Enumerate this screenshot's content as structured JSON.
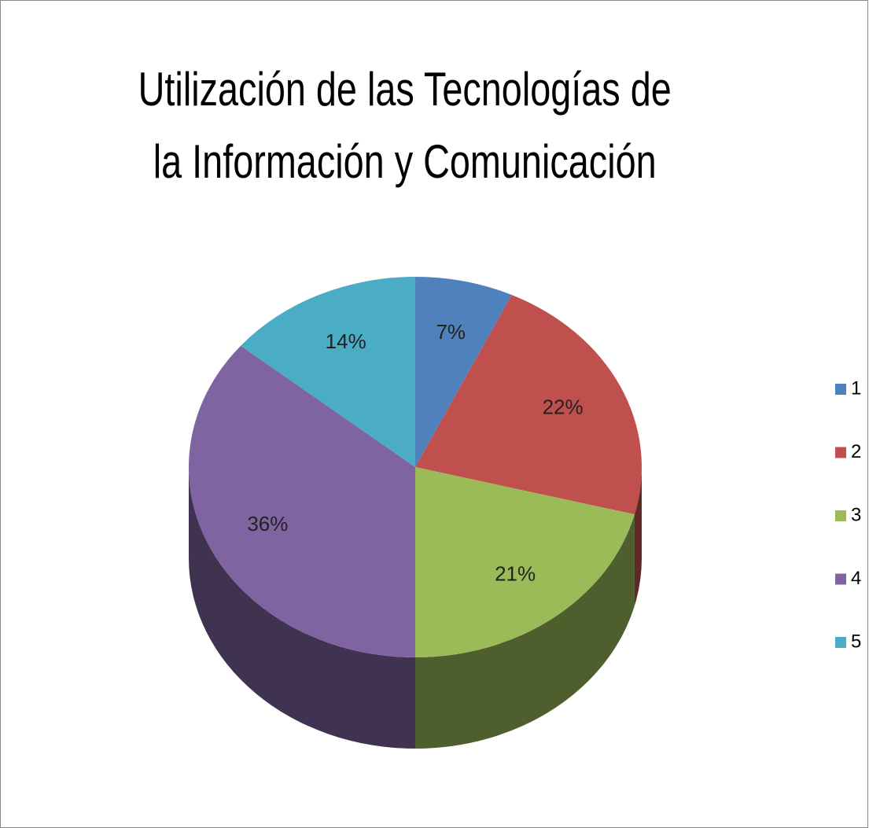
{
  "chart_data": {
    "type": "pie",
    "title": "Utilización de las Tecnologías de la Información y Comunicación",
    "categories": [
      "1",
      "2",
      "3",
      "4",
      "5"
    ],
    "values": [
      7,
      22,
      21,
      36,
      14
    ],
    "value_labels": [
      "7%",
      "22%",
      "21%",
      "36%",
      "14%"
    ],
    "colors": [
      "#4f81bd",
      "#c0504d",
      "#9bbb59",
      "#8064a2",
      "#4bacc6"
    ],
    "legend": "right"
  }
}
